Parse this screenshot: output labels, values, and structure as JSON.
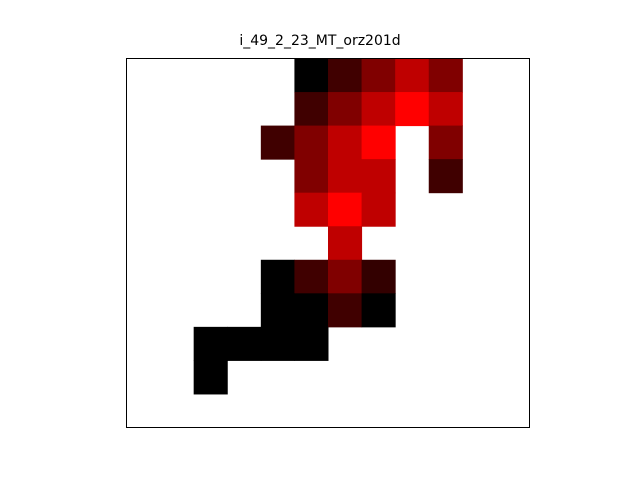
{
  "chart_data": {
    "type": "heatmap",
    "title": "i_49_2_23_MT_orz201d",
    "xlabel": "",
    "ylabel": "",
    "axes_visible": false,
    "grid": false,
    "colormap": "black-red",
    "colormap_stops": [
      "#000000",
      "#ff0000"
    ],
    "missing_color": "#ffffff",
    "n_rows": 11,
    "n_cols": 12,
    "values": [
      [
        null,
        null,
        null,
        null,
        null,
        0.0,
        0.25,
        0.5,
        0.75,
        0.5,
        null,
        null
      ],
      [
        null,
        null,
        null,
        null,
        null,
        0.25,
        0.5,
        0.75,
        1.0,
        0.75,
        null,
        null
      ],
      [
        null,
        null,
        null,
        null,
        0.25,
        0.5,
        0.75,
        1.0,
        null,
        0.5,
        null,
        null
      ],
      [
        null,
        null,
        null,
        null,
        null,
        0.5,
        0.75,
        0.75,
        null,
        0.25,
        null,
        null
      ],
      [
        null,
        null,
        null,
        null,
        null,
        0.75,
        1.0,
        0.75,
        null,
        null,
        null,
        null
      ],
      [
        null,
        null,
        null,
        null,
        null,
        null,
        0.75,
        null,
        null,
        null,
        null,
        null
      ],
      [
        null,
        null,
        null,
        null,
        0.0,
        0.25,
        0.5,
        0.2,
        null,
        null,
        null,
        null
      ],
      [
        null,
        null,
        null,
        null,
        0.0,
        0.0,
        0.25,
        0.0,
        null,
        null,
        null,
        null
      ],
      [
        null,
        null,
        0.0,
        0.0,
        0.0,
        0.0,
        null,
        null,
        null,
        null,
        null,
        null
      ],
      [
        null,
        null,
        0.0,
        null,
        null,
        null,
        null,
        null,
        null,
        null,
        null,
        null
      ],
      [
        null,
        null,
        null,
        null,
        null,
        null,
        null,
        null,
        null,
        null,
        null,
        null
      ]
    ]
  }
}
